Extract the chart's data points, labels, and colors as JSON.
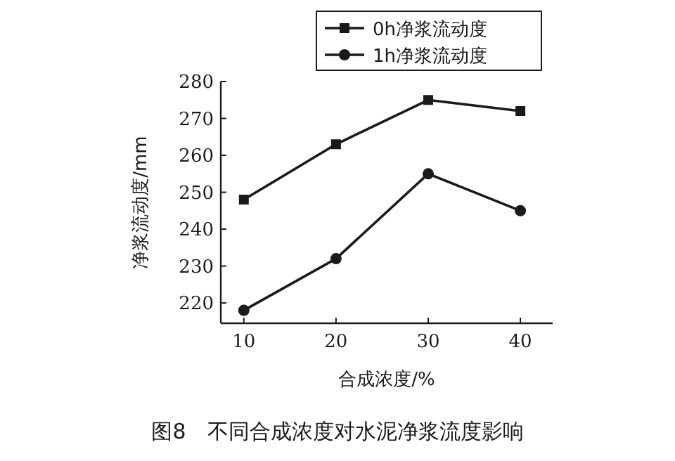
{
  "chart_data": {
    "type": "line",
    "title": "图8　不同合成浓度对水泥净浆流度影响",
    "xlabel": "合成浓度/%",
    "ylabel": "净浆流动度/mm",
    "x": [
      10,
      20,
      30,
      40
    ],
    "series": [
      {
        "name": "0h净浆流动度",
        "color": "#1a1a1a",
        "marker": "square",
        "values": [
          248,
          263,
          275,
          272
        ]
      },
      {
        "name": "1h净浆流动度",
        "color": "#1a1a1a",
        "marker": "circle",
        "values": [
          218,
          232,
          255,
          245
        ]
      }
    ],
    "xlim": [
      7.5,
      43.5
    ],
    "ylim": [
      214.5,
      280
    ],
    "xticks": [
      10,
      20,
      30,
      40
    ],
    "yticks": [
      220,
      230,
      240,
      250,
      260,
      270,
      280
    ],
    "grid": false,
    "legend": "top right",
    "line_style": "solid"
  }
}
